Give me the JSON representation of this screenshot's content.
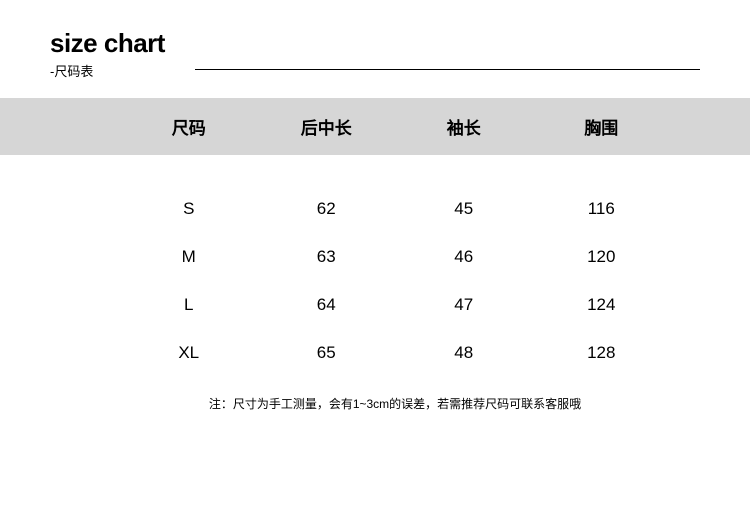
{
  "header": {
    "title_en": "size chart",
    "title_cn": "-尺码表"
  },
  "table": {
    "background_color": "#d6d6d6",
    "columns": [
      "尺码",
      "后中长",
      "袖长",
      "胸围"
    ],
    "rows": [
      [
        "S",
        "62",
        "45",
        "116"
      ],
      [
        "M",
        "63",
        "46",
        "120"
      ],
      [
        "L",
        "64",
        "47",
        "124"
      ],
      [
        "XL",
        "65",
        "48",
        "128"
      ]
    ]
  },
  "footnote": "注：尺寸为手工测量，会有1~3cm的误差，若需推荐尺码可联系客服哦"
}
